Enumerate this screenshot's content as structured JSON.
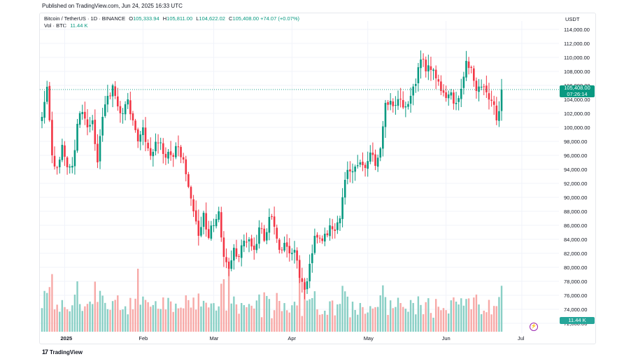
{
  "published": "Published on TradingView.com, Jun 24, 2025 16:33 UTC",
  "legend": {
    "symbol": "Bitcoin / TetherUS · 1D · BINANCE",
    "open_k": "O",
    "open_v": "105,333.94",
    "high_k": "H",
    "high_v": "105,811.00",
    "low_k": "L",
    "low_v": "104,622.02",
    "close_k": "C",
    "close_v": "105,408.00",
    "change": "+74.07 (+0.07%)",
    "vol_label": "Vol · BTC",
    "vol_value": "11.44 K"
  },
  "currency": "USDT",
  "last_price": {
    "price": "105,408.00",
    "countdown": "07:26:14"
  },
  "volume_tag": "11.44 K",
  "footer": {
    "brand": "TradingView",
    "logo_glyph": "17"
  },
  "colors": {
    "up": "#089981",
    "down": "#f23645",
    "vol_up": "#89cfc5",
    "vol_down": "#f7a9a7",
    "grid": "#f0f3fa"
  },
  "chart_data": {
    "type": "candlestick",
    "title": "Bitcoin / TetherUS · 1D · BINANCE",
    "ylim": [
      70000,
      115000
    ],
    "y_ticks": [
      "114,000.00",
      "112,000.00",
      "110,000.00",
      "108,000.00",
      "106,000.00",
      "104,000.00",
      "102,000.00",
      "100,000.00",
      "98,000.00",
      "96,000.00",
      "94,000.00",
      "92,000.00",
      "90,000.00",
      "88,000.00",
      "86,000.00",
      "84,000.00",
      "82,000.00",
      "80,000.00",
      "78,000.00",
      "76,000.00",
      "74,000.00",
      "72,000.00"
    ],
    "y_tick_values": [
      114000,
      112000,
      110000,
      108000,
      106000,
      104000,
      102000,
      100000,
      98000,
      96000,
      94000,
      92000,
      90000,
      88000,
      86000,
      84000,
      82000,
      80000,
      78000,
      76000,
      74000,
      72000
    ],
    "x_labels": [
      {
        "label": "2025",
        "day": 9,
        "bold": true
      },
      {
        "label": "Feb",
        "day": 40,
        "bold": false
      },
      {
        "label": "Mar",
        "day": 68,
        "bold": false
      },
      {
        "label": "Apr",
        "day": 99,
        "bold": false
      },
      {
        "label": "May",
        "day": 129,
        "bold": false
      },
      {
        "label": "Jun",
        "day": 160,
        "bold": false
      },
      {
        "label": "Jul",
        "day": 190,
        "bold": false
      }
    ],
    "first_day_offset": 0,
    "close_anchors": [
      [
        0,
        101500
      ],
      [
        2,
        105800
      ],
      [
        4,
        96000
      ],
      [
        6,
        94200
      ],
      [
        8,
        97500
      ],
      [
        10,
        94300
      ],
      [
        12,
        94500
      ],
      [
        14,
        100500
      ],
      [
        16,
        102200
      ],
      [
        18,
        100000
      ],
      [
        20,
        101000
      ],
      [
        22,
        95000
      ],
      [
        24,
        101500
      ],
      [
        26,
        104500
      ],
      [
        28,
        106000
      ],
      [
        30,
        103000
      ],
      [
        32,
        102000
      ],
      [
        34,
        104000
      ],
      [
        36,
        101000
      ],
      [
        38,
        98000
      ],
      [
        40,
        100000
      ],
      [
        42,
        97000
      ],
      [
        44,
        96500
      ],
      [
        46,
        97800
      ],
      [
        48,
        96200
      ],
      [
        50,
        96500
      ],
      [
        52,
        95800
      ],
      [
        54,
        97200
      ],
      [
        56,
        95400
      ],
      [
        58,
        91500
      ],
      [
        60,
        88000
      ],
      [
        62,
        84500
      ],
      [
        64,
        87800
      ],
      [
        66,
        84200
      ],
      [
        68,
        86000
      ],
      [
        70,
        88000
      ],
      [
        72,
        81500
      ],
      [
        74,
        79800
      ],
      [
        76,
        82800
      ],
      [
        78,
        81500
      ],
      [
        80,
        83800
      ],
      [
        82,
        84000
      ],
      [
        84,
        82500
      ],
      [
        86,
        85700
      ],
      [
        88,
        83800
      ],
      [
        90,
        87200
      ],
      [
        92,
        85800
      ],
      [
        94,
        82500
      ],
      [
        96,
        83500
      ],
      [
        98,
        82000
      ],
      [
        100,
        82500
      ],
      [
        102,
        78500
      ],
      [
        104,
        76800
      ],
      [
        106,
        80500
      ],
      [
        108,
        84500
      ],
      [
        110,
        84200
      ],
      [
        112,
        84800
      ],
      [
        114,
        86000
      ],
      [
        116,
        85200
      ],
      [
        118,
        87000
      ],
      [
        120,
        92500
      ],
      [
        122,
        93700
      ],
      [
        124,
        94400
      ],
      [
        126,
        95000
      ],
      [
        128,
        94200
      ],
      [
        130,
        96400
      ],
      [
        132,
        94500
      ],
      [
        134,
        97000
      ],
      [
        136,
        103500
      ],
      [
        138,
        103800
      ],
      [
        140,
        103200
      ],
      [
        142,
        104000
      ],
      [
        144,
        103000
      ],
      [
        146,
        104500
      ],
      [
        148,
        106200
      ],
      [
        150,
        109700
      ],
      [
        152,
        108000
      ],
      [
        154,
        108200
      ],
      [
        156,
        107000
      ],
      [
        158,
        105200
      ],
      [
        160,
        104200
      ],
      [
        162,
        105000
      ],
      [
        164,
        103500
      ],
      [
        166,
        105500
      ],
      [
        168,
        109500
      ],
      [
        170,
        108500
      ],
      [
        172,
        105200
      ],
      [
        174,
        105800
      ],
      [
        176,
        105000
      ],
      [
        178,
        103800
      ],
      [
        180,
        101000
      ],
      [
        182,
        105408
      ]
    ],
    "series": [
      {
        "name": "Vol · BTC",
        "last_value": "11.44 K"
      }
    ]
  }
}
